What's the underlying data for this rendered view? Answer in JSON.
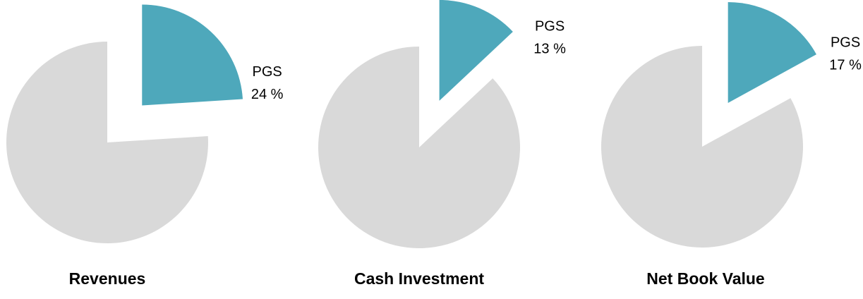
{
  "chart_data": [
    {
      "type": "pie",
      "title": "Revenues",
      "categories": [
        "PGS",
        null
      ],
      "values": [
        24,
        76
      ],
      "value_labels": [
        "24 %",
        null
      ],
      "colors": [
        "#4ea8bb",
        "#d9d9d9"
      ],
      "exploded": [
        true,
        false
      ]
    },
    {
      "type": "pie",
      "title": "Cash Investment",
      "categories": [
        "PGS",
        null
      ],
      "values": [
        13,
        87
      ],
      "value_labels": [
        "13 %",
        null
      ],
      "colors": [
        "#4ea8bb",
        "#d9d9d9"
      ],
      "exploded": [
        true,
        false
      ]
    },
    {
      "type": "pie",
      "title": "Net Book Value",
      "categories": [
        "PGS",
        null
      ],
      "values": [
        17,
        83
      ],
      "value_labels": [
        "17 %",
        null
      ],
      "colors": [
        "#4ea8bb",
        "#d9d9d9"
      ],
      "exploded": [
        true,
        false
      ]
    }
  ]
}
